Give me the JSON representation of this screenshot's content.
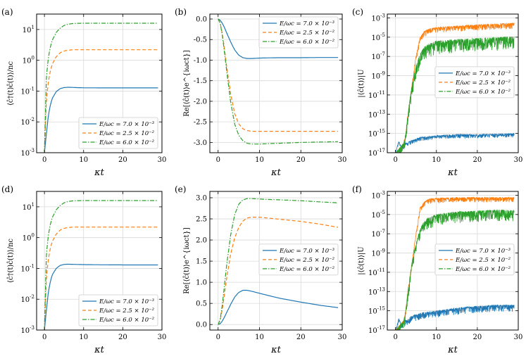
{
  "colors": {
    "blue": "#1f77b4",
    "orange": "#ff7f0e",
    "green": "#2ca02c",
    "grid": "#d9d9d9"
  },
  "chart_data": [
    {
      "type": "line",
      "panel_label": "(a)",
      "yscale": "log",
      "xlabel": "κt",
      "ylabel": "⟨ĉ†(t)ĉ(t)⟩/nc",
      "xlim": [
        -2,
        30
      ],
      "ylim_exp": [
        -3,
        1.5
      ],
      "xticks": [
        0,
        10,
        20,
        30
      ],
      "yticks": [
        {
          "base": "10",
          "exp": "1"
        },
        {
          "base": "10",
          "exp": "0"
        },
        {
          "base": "10",
          "exp": "-1"
        },
        {
          "base": "10",
          "exp": "-2"
        },
        {
          "base": "10",
          "exp": "-3"
        }
      ],
      "legend_position": "lower-right",
      "series": [
        {
          "name": "E/ωc = 7.0 × 10⁻³",
          "color": "blue",
          "dash": "solid",
          "x": [
            0,
            0.5,
            1,
            1.5,
            2,
            3,
            4,
            5,
            6,
            7,
            8,
            10,
            15,
            20,
            25,
            29
          ],
          "y": [
            0.001,
            0.0042,
            0.016,
            0.035,
            0.058,
            0.096,
            0.12,
            0.13,
            0.133,
            0.132,
            0.13,
            0.128,
            0.127,
            0.127,
            0.127,
            0.127
          ]
        },
        {
          "name": "E/ωc = 2.5 × 10⁻²",
          "color": "orange",
          "dash": "dashed",
          "x": [
            0,
            0.5,
            1,
            1.5,
            2,
            3,
            4,
            5,
            6,
            7,
            8,
            10,
            15,
            20,
            25,
            29
          ],
          "y": [
            0.001,
            0.052,
            0.2,
            0.45,
            0.75,
            1.3,
            1.75,
            2.0,
            2.12,
            2.18,
            2.2,
            2.2,
            2.2,
            2.2,
            2.2,
            2.2
          ]
        },
        {
          "name": "E/ωc = 6.0 × 10⁻²",
          "color": "green",
          "dash": "dashdot",
          "x": [
            0,
            0.5,
            1,
            1.5,
            2,
            3,
            4,
            5,
            6,
            7,
            8,
            10,
            15,
            20,
            25,
            29
          ],
          "y": [
            0.001,
            0.3,
            1.2,
            2.7,
            4.5,
            8.0,
            11,
            13.5,
            14.8,
            15.5,
            15.8,
            16,
            16,
            16,
            16,
            16
          ]
        }
      ]
    },
    {
      "type": "line",
      "panel_label": "(b)",
      "yscale": "linear",
      "xlabel": "κt",
      "ylabel": "Re[⟨ĉ(t)⟩e^{iωct}]",
      "xlim": [
        -2,
        30
      ],
      "ylim": [
        -3.25,
        0.12
      ],
      "xticks": [
        0,
        10,
        20,
        30
      ],
      "yticks": [
        "0.0",
        "-0.5",
        "-1.0",
        "-1.5",
        "-2.0",
        "-2.5",
        "-3.0"
      ],
      "legend_position": "upper-right",
      "series": [
        {
          "name": "E/ωc = 7.0 × 10⁻³",
          "color": "blue",
          "dash": "solid",
          "x": [
            0,
            0.5,
            1,
            1.5,
            2,
            3,
            4,
            5,
            6,
            7,
            8,
            10,
            12,
            15,
            20,
            25,
            29
          ],
          "y": [
            0,
            -0.03,
            -0.1,
            -0.2,
            -0.32,
            -0.55,
            -0.75,
            -0.88,
            -0.94,
            -0.96,
            -0.96,
            -0.95,
            -0.945,
            -0.94,
            -0.94,
            -0.935,
            -0.935
          ]
        },
        {
          "name": "E/ωc = 2.5 × 10⁻²",
          "color": "orange",
          "dash": "dashed",
          "x": [
            0,
            0.5,
            1,
            1.5,
            2,
            3,
            4,
            5,
            6,
            7,
            8,
            10,
            12,
            15,
            20,
            25,
            29
          ],
          "y": [
            0,
            -0.1,
            -0.35,
            -0.7,
            -1.1,
            -1.8,
            -2.3,
            -2.55,
            -2.67,
            -2.71,
            -2.73,
            -2.73,
            -2.73,
            -2.73,
            -2.73,
            -2.73,
            -2.73
          ]
        },
        {
          "name": "E/ωc = 6.0 × 10⁻²",
          "color": "green",
          "dash": "dashdot",
          "x": [
            0,
            0.5,
            1,
            1.5,
            2,
            3,
            4,
            5,
            6,
            7,
            8,
            10,
            12,
            15,
            20,
            25,
            29
          ],
          "y": [
            0,
            -0.1,
            -0.38,
            -0.78,
            -1.2,
            -2.0,
            -2.55,
            -2.83,
            -2.96,
            -3.02,
            -3.04,
            -3.04,
            -3.03,
            -3.02,
            -3.0,
            -2.99,
            -2.98
          ]
        }
      ]
    },
    {
      "type": "line",
      "panel_label": "(c)",
      "yscale": "log",
      "xlabel": "κt",
      "ylabel": "|⟨ĉ(t)⟩|U",
      "xlim": [
        -2,
        30
      ],
      "ylim_exp": [
        -17,
        -2.6
      ],
      "xticks": [
        0,
        10,
        20,
        30
      ],
      "yticks": [
        {
          "base": "10",
          "exp": "-3"
        },
        {
          "base": "10",
          "exp": "-5"
        },
        {
          "base": "10",
          "exp": "-7"
        },
        {
          "base": "10",
          "exp": "-9"
        },
        {
          "base": "10",
          "exp": "-11"
        },
        {
          "base": "10",
          "exp": "-13"
        },
        {
          "base": "10",
          "exp": "-15"
        },
        {
          "base": "10",
          "exp": "-17"
        }
      ],
      "legend_position": "center-right",
      "series": [
        {
          "name": "E/ωc = 7.0 × 10⁻³",
          "color": "blue",
          "dash": "solid",
          "x": [
            0,
            0.8,
            1.5,
            2.3,
            3,
            4,
            6,
            10,
            15,
            20,
            25,
            29
          ],
          "y": [
            1e-17,
            1.6e-16,
            3e-17,
            1e-16,
            1.2e-16,
            2e-16,
            4e-16,
            6e-16,
            8e-16,
            8e-16,
            9e-16,
            1e-15
          ],
          "noise": 0.4
        },
        {
          "name": "E/ωc = 2.5 × 10⁻²",
          "color": "orange",
          "dash": "dashed",
          "x": [
            0,
            1,
            2,
            2.5,
            3,
            4,
            5,
            6,
            7,
            8,
            10,
            15,
            20,
            25,
            29
          ],
          "y": [
            1e-17,
            3e-17,
            1e-16,
            1e-15,
            1e-13,
            1e-10,
            1e-07,
            1e-05,
            4e-05,
            7e-05,
            0.0001,
            0.00015,
            0.0002,
            0.00025,
            0.0003
          ],
          "noise": 0.6
        },
        {
          "name": "E/ωc = 6.0 × 10⁻²",
          "color": "green",
          "dash": "dashdot",
          "x": [
            0,
            1,
            2,
            2.5,
            3,
            4,
            5,
            6,
            7,
            8,
            10,
            15,
            20,
            25,
            29
          ],
          "y": [
            1e-17,
            3e-17,
            1e-16,
            1e-15,
            1e-13,
            1e-10,
            1e-08,
            2e-07,
            1e-06,
            2e-06,
            4e-06,
            6e-06,
            8e-06,
            1e-05,
            1.2e-05
          ],
          "noise": 1.4
        }
      ]
    },
    {
      "type": "line",
      "panel_label": "(d)",
      "yscale": "log",
      "xlabel": "κt",
      "ylabel": "⟨ĉ†(t)ĉ(t)⟩/nc",
      "xlim": [
        -2,
        30
      ],
      "ylim_exp": [
        -3,
        1.5
      ],
      "xticks": [
        0,
        10,
        20,
        30
      ],
      "yticks": [
        {
          "base": "10",
          "exp": "1"
        },
        {
          "base": "10",
          "exp": "0"
        },
        {
          "base": "10",
          "exp": "-1"
        },
        {
          "base": "10",
          "exp": "-2"
        },
        {
          "base": "10",
          "exp": "-3"
        }
      ],
      "legend_position": "lower-right",
      "series": [
        {
          "name": "E/ωc = 7.0 × 10⁻³",
          "color": "blue",
          "dash": "solid",
          "x": [
            0,
            0.5,
            1,
            1.5,
            2,
            3,
            4,
            5,
            6,
            7,
            8,
            10,
            15,
            20,
            25,
            29
          ],
          "y": [
            0.001,
            0.0045,
            0.017,
            0.037,
            0.062,
            0.1,
            0.125,
            0.135,
            0.137,
            0.136,
            0.135,
            0.133,
            0.131,
            0.13,
            0.13,
            0.13
          ]
        },
        {
          "name": "E/ωc = 2.5 × 10⁻²",
          "color": "orange",
          "dash": "dashed",
          "x": [
            0,
            0.5,
            1,
            1.5,
            2,
            3,
            4,
            5,
            6,
            7,
            8,
            10,
            15,
            20,
            25,
            29
          ],
          "y": [
            0.001,
            0.052,
            0.2,
            0.45,
            0.75,
            1.3,
            1.75,
            2.0,
            2.12,
            2.18,
            2.2,
            2.2,
            2.2,
            2.2,
            2.2,
            2.2
          ]
        },
        {
          "name": "E/ωc = 6.0 × 10⁻²",
          "color": "green",
          "dash": "dashdot",
          "x": [
            0,
            0.5,
            1,
            1.5,
            2,
            3,
            4,
            5,
            6,
            7,
            8,
            10,
            15,
            20,
            25,
            29
          ],
          "y": [
            0.001,
            0.3,
            1.2,
            2.7,
            4.5,
            8.0,
            11,
            13.5,
            14.8,
            15.5,
            15.8,
            16,
            16,
            16,
            16,
            16
          ]
        }
      ]
    },
    {
      "type": "line",
      "panel_label": "(e)",
      "yscale": "linear",
      "xlabel": "κt",
      "ylabel": "Re[⟨ĉ(t)⟩e^{iωct}]",
      "xlim": [
        -2,
        30
      ],
      "ylim": [
        -0.13,
        3.15
      ],
      "xticks": [
        0,
        10,
        20,
        30
      ],
      "yticks": [
        "3.0",
        "2.5",
        "2.0",
        "1.5",
        "1.0",
        "0.5",
        "0.0"
      ],
      "legend_position": "center-right",
      "series": [
        {
          "name": "E/ωc = 7.0 × 10⁻³",
          "color": "blue",
          "dash": "solid",
          "x": [
            0,
            0.5,
            1,
            1.5,
            2,
            3,
            4,
            5,
            6,
            7,
            8,
            10,
            12,
            15,
            20,
            25,
            29
          ],
          "y": [
            0,
            0.02,
            0.08,
            0.17,
            0.27,
            0.47,
            0.65,
            0.76,
            0.81,
            0.81,
            0.79,
            0.74,
            0.69,
            0.62,
            0.53,
            0.45,
            0.4
          ]
        },
        {
          "name": "E/ωc = 2.5 × 10⁻²",
          "color": "orange",
          "dash": "dashed",
          "x": [
            0,
            0.5,
            1,
            1.5,
            2,
            3,
            4,
            5,
            6,
            7,
            8,
            10,
            12,
            15,
            20,
            25,
            29
          ],
          "y": [
            0,
            0.1,
            0.35,
            0.7,
            1.05,
            1.65,
            2.05,
            2.3,
            2.45,
            2.52,
            2.54,
            2.54,
            2.52,
            2.49,
            2.44,
            2.37,
            2.3
          ]
        },
        {
          "name": "E/ωc = 6.0 × 10⁻²",
          "color": "green",
          "dash": "dashdot",
          "x": [
            0,
            0.5,
            1,
            1.5,
            2,
            3,
            4,
            5,
            6,
            7,
            8,
            10,
            12,
            15,
            20,
            25,
            29
          ],
          "y": [
            0,
            0.12,
            0.45,
            0.9,
            1.35,
            2.1,
            2.6,
            2.85,
            2.95,
            2.98,
            2.98,
            2.97,
            2.96,
            2.95,
            2.93,
            2.9,
            2.88
          ]
        }
      ]
    },
    {
      "type": "line",
      "panel_label": "(f)",
      "yscale": "log",
      "xlabel": "κt",
      "ylabel": "|⟨ĉ(t)⟩|U",
      "xlim": [
        -2,
        30
      ],
      "ylim_exp": [
        -17,
        -2.6
      ],
      "xticks": [
        0,
        10,
        20,
        30
      ],
      "yticks": [
        {
          "base": "10",
          "exp": "-3"
        },
        {
          "base": "10",
          "exp": "-5"
        },
        {
          "base": "10",
          "exp": "-7"
        },
        {
          "base": "10",
          "exp": "-9"
        },
        {
          "base": "10",
          "exp": "-11"
        },
        {
          "base": "10",
          "exp": "-13"
        },
        {
          "base": "10",
          "exp": "-15"
        },
        {
          "base": "10",
          "exp": "-17"
        }
      ],
      "legend_position": "center-right",
      "series": [
        {
          "name": "E/ωc = 7.0 × 10⁻³",
          "color": "blue",
          "dash": "solid",
          "x": [
            0,
            0.8,
            1.5,
            2.3,
            3,
            4,
            6,
            10,
            15,
            20,
            25,
            29
          ],
          "y": [
            1e-17,
            1.6e-16,
            3e-17,
            1e-16,
            1.2e-16,
            3e-16,
            6e-16,
            1e-15,
            2e-15,
            3e-15,
            4e-15,
            4e-15
          ],
          "noise": 0.7
        },
        {
          "name": "E/ωc = 2.5 × 10⁻²",
          "color": "orange",
          "dash": "dashed",
          "x": [
            0,
            1,
            2,
            2.5,
            3,
            4,
            5,
            6,
            7,
            8,
            10,
            15,
            20,
            25,
            29
          ],
          "y": [
            1e-17,
            3e-17,
            1e-16,
            1e-15,
            1e-13,
            1e-10,
            1e-07,
            5e-05,
            0.0002,
            0.0004,
            0.0005,
            0.0006,
            0.0006,
            0.0006,
            0.0006
          ],
          "noise": 0.5
        },
        {
          "name": "E/ωc = 6.0 × 10⁻²",
          "color": "green",
          "dash": "dashdot",
          "x": [
            0,
            1,
            2,
            2.5,
            3,
            4,
            5,
            6,
            7,
            8,
            10,
            15,
            20,
            25,
            29
          ],
          "y": [
            1e-17,
            3e-17,
            1e-16,
            1e-15,
            1e-13,
            1e-10,
            1e-08,
            3e-07,
            2e-06,
            5e-06,
            1e-05,
            2e-05,
            2.5e-05,
            3e-05,
            3e-05
          ],
          "noise": 1.2
        }
      ]
    }
  ]
}
